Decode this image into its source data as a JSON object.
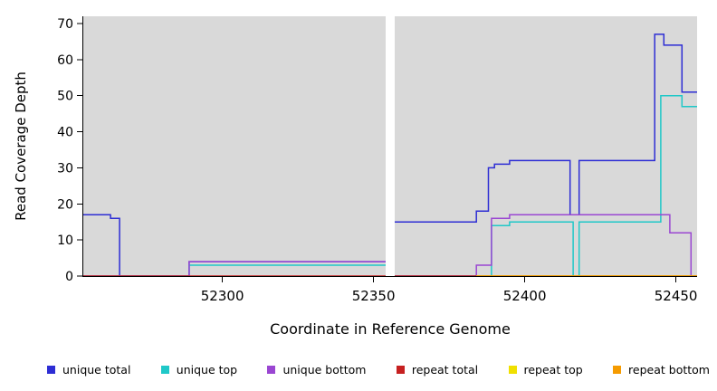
{
  "chart_data": {
    "type": "line",
    "subtype": "step-coverage",
    "title": "",
    "xlabel": "Coordinate in Reference Genome",
    "ylabel": "Read Coverage Depth",
    "xlim": [
      52254,
      52457
    ],
    "ylim": [
      0,
      72
    ],
    "x_ticks": [
      52300,
      52350,
      52400,
      52450
    ],
    "y_ticks": [
      0,
      10,
      20,
      30,
      40,
      50,
      60,
      70
    ],
    "grid": false,
    "plot_bg": "#d9d9d9",
    "gap": {
      "x_start": 52354,
      "x_end": 52357,
      "color": "#ffffff"
    },
    "series": [
      {
        "name": "unique total",
        "color": "#2d2dd4",
        "segments": [
          [
            [
              52254,
              17
            ],
            [
              52263,
              16
            ],
            [
              52266,
              0
            ],
            [
              52289,
              4
            ],
            [
              52354,
              4
            ]
          ],
          [
            [
              52357,
              15
            ],
            [
              52384,
              18
            ],
            [
              52388,
              30
            ],
            [
              52390,
              31
            ],
            [
              52395,
              32
            ],
            [
              52415,
              17
            ],
            [
              52418,
              32
            ],
            [
              52443,
              67
            ],
            [
              52446,
              64
            ],
            [
              52452,
              51
            ],
            [
              52457,
              51
            ]
          ]
        ]
      },
      {
        "name": "unique top",
        "color": "#1fc8c8",
        "segments": [
          [
            [
              52254,
              0
            ],
            [
              52289,
              3
            ],
            [
              52354,
              3
            ]
          ],
          [
            [
              52357,
              0
            ],
            [
              52389,
              14
            ],
            [
              52395,
              15
            ],
            [
              52416,
              0
            ],
            [
              52418,
              15
            ],
            [
              52445,
              50
            ],
            [
              52452,
              47
            ],
            [
              52457,
              47
            ]
          ]
        ]
      },
      {
        "name": "unique bottom",
        "color": "#9a46d2",
        "segments": [
          [
            [
              52254,
              0
            ],
            [
              52289,
              4
            ],
            [
              52354,
              4
            ]
          ],
          [
            [
              52357,
              0
            ],
            [
              52384,
              3
            ],
            [
              52389,
              16
            ],
            [
              52395,
              17
            ],
            [
              52448,
              12
            ],
            [
              52455,
              0
            ],
            [
              52457,
              0
            ]
          ]
        ]
      },
      {
        "name": "repeat total",
        "color": "#c62020",
        "segments": [
          [
            [
              52254,
              0
            ],
            [
              52354,
              0
            ]
          ],
          [
            [
              52357,
              0
            ],
            [
              52457,
              0
            ]
          ]
        ]
      },
      {
        "name": "repeat top",
        "color": "#f0e000",
        "segments": [
          [
            [
              52384,
              0
            ],
            [
              52457,
              0
            ]
          ]
        ]
      },
      {
        "name": "repeat bottom",
        "color": "#f59b00",
        "segments": [
          [
            [
              52384,
              0
            ],
            [
              52457,
              0
            ]
          ]
        ]
      }
    ],
    "legend": {
      "position": "bottom",
      "items": [
        {
          "label": "unique total",
          "color": "#2d2dd4"
        },
        {
          "label": "unique top",
          "color": "#1fc8c8"
        },
        {
          "label": "unique bottom",
          "color": "#9a46d2"
        },
        {
          "label": "repeat total",
          "color": "#c62020"
        },
        {
          "label": "repeat top",
          "color": "#f0e000"
        },
        {
          "label": "repeat bottom",
          "color": "#f59b00"
        }
      ]
    }
  }
}
